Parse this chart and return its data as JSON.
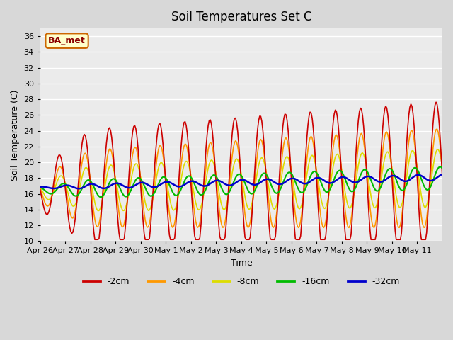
{
  "title": "Soil Temperatures Set C",
  "xlabel": "Time",
  "ylabel": "Soil Temperature (C)",
  "ylim": [
    10,
    37
  ],
  "yticks": [
    10,
    12,
    14,
    16,
    18,
    20,
    22,
    24,
    26,
    28,
    30,
    32,
    34,
    36
  ],
  "xtick_labels": [
    "Apr 26",
    "Apr 27",
    "Apr 28",
    "Apr 29",
    "Apr 30",
    "May 1",
    "May 2",
    "May 3",
    "May 4",
    "May 5",
    "May 6",
    "May 7",
    "May 8",
    "May 9",
    "May 10",
    "May 11"
  ],
  "colors": {
    "-2cm": "#cc0000",
    "-4cm": "#ff9900",
    "-8cm": "#dddd00",
    "-16cm": "#00bb00",
    "-32cm": "#0000cc"
  },
  "bg_color": "#d8d8d8",
  "plot_bg": "#ebebeb",
  "annotation_text": "BA_met",
  "annotation_bg": "#ffffcc",
  "annotation_border": "#cc6600"
}
